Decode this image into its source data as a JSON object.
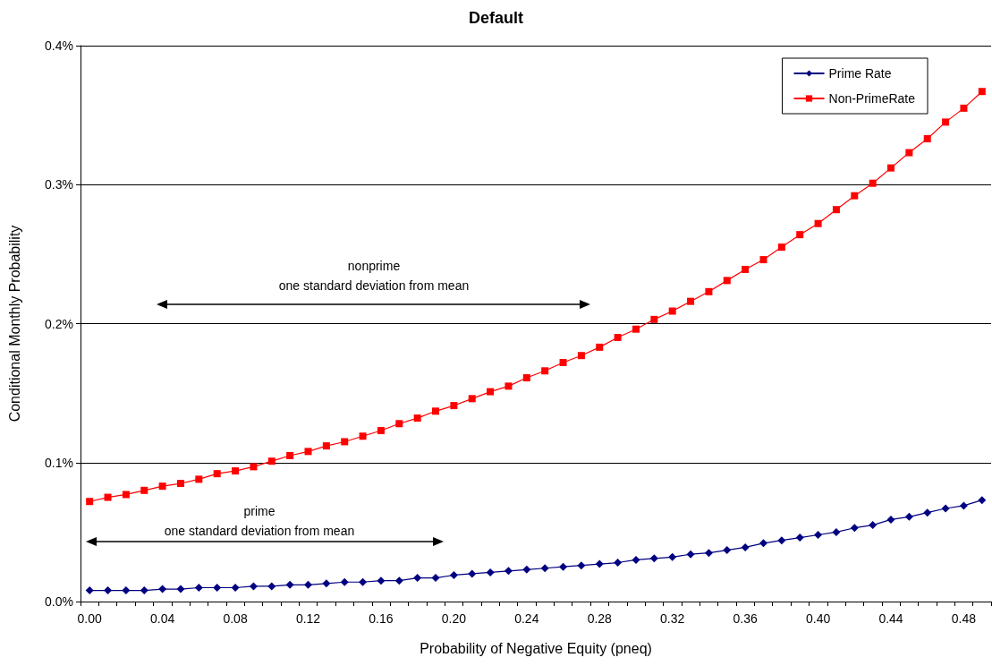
{
  "chart_data": {
    "type": "line",
    "title": "Default",
    "xlabel": "Probability of Negative Equity (pneq)",
    "ylabel": "Conditional Monthly Probability",
    "categories": [
      "0.00",
      null,
      null,
      null,
      "0.04",
      null,
      null,
      null,
      "0.08",
      null,
      null,
      null,
      "0.12",
      null,
      null,
      null,
      "0.16",
      null,
      null,
      null,
      "0.20",
      null,
      null,
      null,
      "0.24",
      null,
      null,
      null,
      "0.28",
      null,
      null,
      null,
      "0.32",
      null,
      null,
      null,
      "0.36",
      null,
      null,
      null,
      "0.40",
      null,
      null,
      null,
      "0.44",
      null,
      null,
      null,
      "0.48",
      null
    ],
    "series": [
      {
        "name": "Prime Rate",
        "color": "#000080",
        "marker": "diamond",
        "values": [
          0.008,
          0.008,
          0.008,
          0.008,
          0.009,
          0.009,
          0.01,
          0.01,
          0.01,
          0.011,
          0.011,
          0.012,
          0.012,
          0.013,
          0.014,
          0.014,
          0.015,
          0.015,
          0.017,
          0.017,
          0.019,
          0.02,
          0.021,
          0.022,
          0.023,
          0.024,
          0.025,
          0.026,
          0.027,
          0.028,
          0.03,
          0.031,
          0.032,
          0.034,
          0.035,
          0.037,
          0.039,
          0.042,
          0.044,
          0.046,
          0.048,
          0.05,
          0.053,
          0.055,
          0.059,
          0.061,
          0.064,
          0.067,
          0.069,
          0.073
        ]
      },
      {
        "name": "Non-PrimeRate",
        "color": "#ff0000",
        "marker": "square",
        "values": [
          0.072,
          0.075,
          0.077,
          0.08,
          0.083,
          0.085,
          0.088,
          0.092,
          0.094,
          0.097,
          0.101,
          0.105,
          0.108,
          0.112,
          0.115,
          0.119,
          0.123,
          0.128,
          0.132,
          0.137,
          0.141,
          0.146,
          0.151,
          0.155,
          0.161,
          0.166,
          0.172,
          0.177,
          0.183,
          0.19,
          0.196,
          0.203,
          0.209,
          0.216,
          0.223,
          0.231,
          0.239,
          0.246,
          0.255,
          0.264,
          0.272,
          0.282,
          0.292,
          0.301,
          0.312,
          0.323,
          0.333,
          0.345,
          0.355,
          0.367
        ]
      }
    ],
    "ylim": [
      0,
      0.4
    ],
    "yticks": [
      {
        "value": 0,
        "label": "0.0%"
      },
      {
        "value": 0.1,
        "label": "0.1%"
      },
      {
        "value": 0.2,
        "label": "0.2%"
      },
      {
        "value": 0.3,
        "label": "0.3%"
      },
      {
        "value": 0.4,
        "label": "0.4%"
      }
    ],
    "annotations": [
      "nonprime\none standard deviation from mean",
      "prime\none standard deviation from mean"
    ],
    "grid": "y",
    "legend": "top right",
    "line_style": "solid"
  }
}
